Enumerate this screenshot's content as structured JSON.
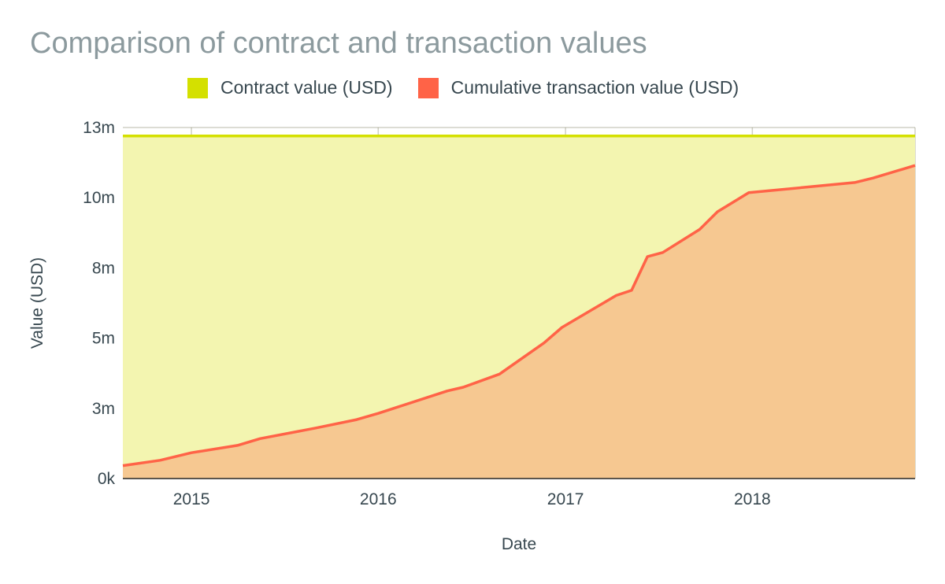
{
  "chart_data": {
    "type": "area",
    "title": "Comparison of contract and transaction values",
    "xlabel": "Date",
    "ylabel": "Value (USD)",
    "x_ticks": [
      {
        "label": "2015",
        "date": "2015-01-01"
      },
      {
        "label": "2016",
        "date": "2016-01-01"
      },
      {
        "label": "2017",
        "date": "2017-01-01"
      },
      {
        "label": "2018",
        "date": "2018-01-01"
      }
    ],
    "x_range": [
      "2014-08-20",
      "2018-11-15"
    ],
    "y_ticks": [
      {
        "label": "0k",
        "value": 0
      },
      {
        "label": "3m",
        "value": 2500000
      },
      {
        "label": "5m",
        "value": 5000000
      },
      {
        "label": "8m",
        "value": 7500000
      },
      {
        "label": "10m",
        "value": 10000000
      },
      {
        "label": "13m",
        "value": 12500000
      }
    ],
    "ylim": [
      0,
      12500000
    ],
    "grid": true,
    "legend_position": "top",
    "series": [
      {
        "name": "Contract value (USD)",
        "color": "#d4e000",
        "fill": "#f3f5b0",
        "points": [
          {
            "x": "2014-08-20",
            "y": 12200000
          },
          {
            "x": "2018-11-15",
            "y": 12200000
          }
        ]
      },
      {
        "name": "Cumulative transaction value (USD)",
        "color": "#ff6347",
        "fill": "#f6c891",
        "points": [
          {
            "x": "2014-08-20",
            "y": 460000
          },
          {
            "x": "2014-11-01",
            "y": 650000
          },
          {
            "x": "2015-01-01",
            "y": 920000
          },
          {
            "x": "2015-04-01",
            "y": 1180000
          },
          {
            "x": "2015-05-15",
            "y": 1420000
          },
          {
            "x": "2015-09-01",
            "y": 1800000
          },
          {
            "x": "2015-11-20",
            "y": 2100000
          },
          {
            "x": "2016-01-01",
            "y": 2320000
          },
          {
            "x": "2016-05-15",
            "y": 3120000
          },
          {
            "x": "2016-06-15",
            "y": 3250000
          },
          {
            "x": "2016-08-25",
            "y": 3720000
          },
          {
            "x": "2016-11-20",
            "y": 4830000
          },
          {
            "x": "2016-12-25",
            "y": 5380000
          },
          {
            "x": "2017-04-10",
            "y": 6520000
          },
          {
            "x": "2017-05-10",
            "y": 6700000
          },
          {
            "x": "2017-06-10",
            "y": 7900000
          },
          {
            "x": "2017-07-10",
            "y": 8050000
          },
          {
            "x": "2017-09-20",
            "y": 8870000
          },
          {
            "x": "2017-10-25",
            "y": 9500000
          },
          {
            "x": "2017-12-25",
            "y": 10180000
          },
          {
            "x": "2018-07-20",
            "y": 10540000
          },
          {
            "x": "2018-08-25",
            "y": 10700000
          },
          {
            "x": "2018-11-15",
            "y": 11150000
          }
        ]
      }
    ]
  }
}
